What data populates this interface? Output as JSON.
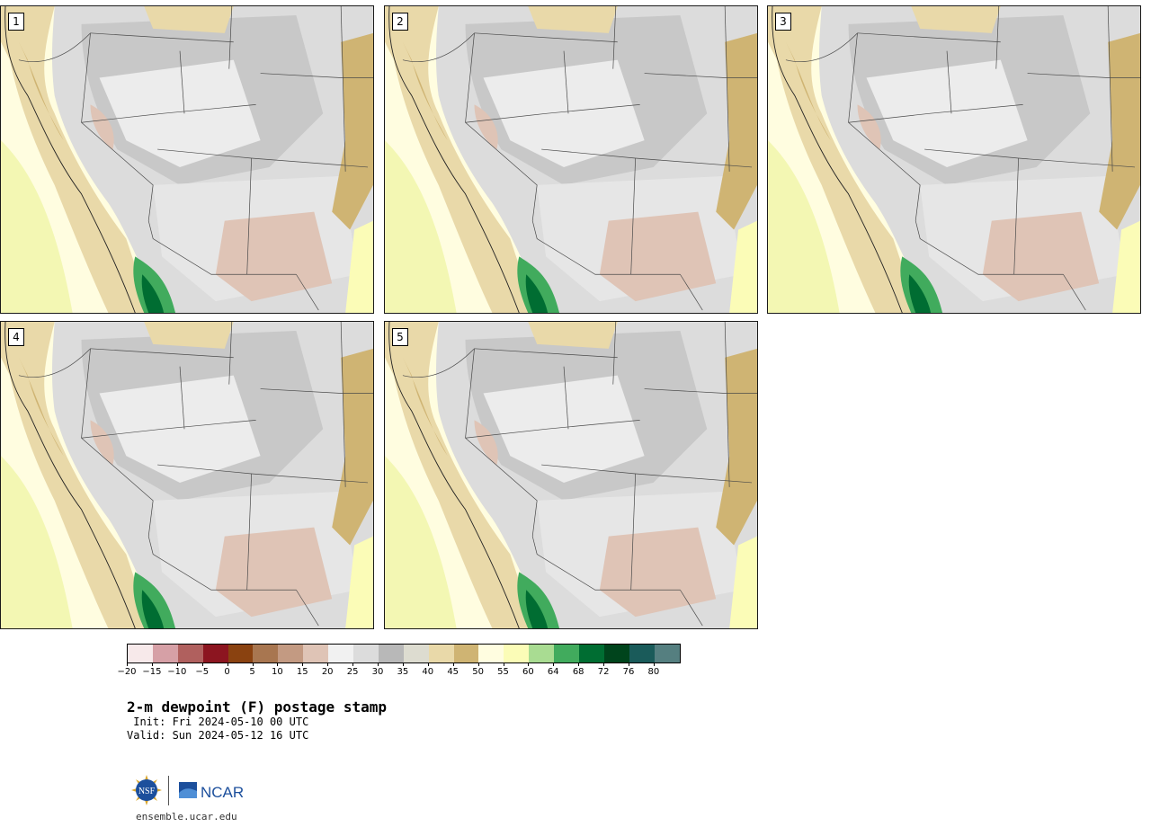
{
  "product_title": "2-m dewpoint (F) postage stamp",
  "init_text": " Init: Fri 2024-05-10 00 UTC",
  "valid_text": "Valid: Sun 2024-05-12 16 UTC",
  "website": "ensemble.ucar.edu",
  "logos": {
    "nsf": "NSF",
    "ncar": "NCAR"
  },
  "members": [
    {
      "label": "1"
    },
    {
      "label": "2"
    },
    {
      "label": "3"
    },
    {
      "label": "4"
    },
    {
      "label": "5"
    }
  ],
  "colorbar": {
    "colors": [
      "#f7e9ea",
      "#d6a0a6",
      "#b0605e",
      "#8c1520",
      "#8a4210",
      "#a87650",
      "#c39a82",
      "#dfc4b6",
      "#f1f1f1",
      "#dcdcdc",
      "#b8b8b8",
      "#dddcd0",
      "#e9d9a9",
      "#cfb473",
      "#fffde0",
      "#fbfcb7",
      "#a9dc92",
      "#41ab5d",
      "#006d32",
      "#00441c",
      "#1a5b5a",
      "#557f80"
    ],
    "labels": [
      "−20",
      "−15",
      "−10",
      "−5",
      "0",
      "5",
      "10",
      "15",
      "20",
      "25",
      "30",
      "35",
      "40",
      "45",
      "50",
      "55",
      "60",
      "64",
      "68",
      "72",
      "76",
      "80"
    ]
  }
}
